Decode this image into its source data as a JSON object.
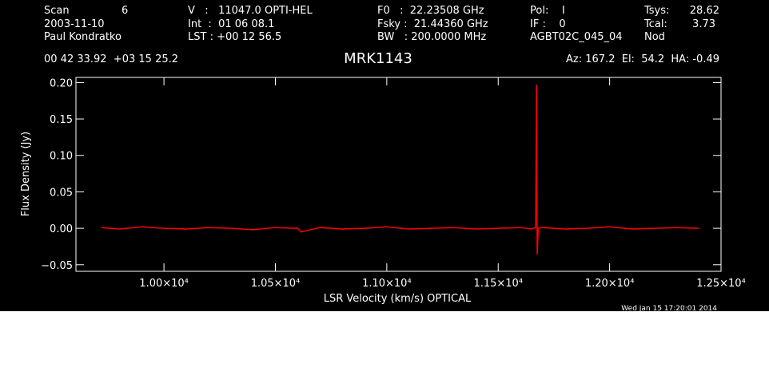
{
  "header": {
    "scan_label": "Scan",
    "scan": "6",
    "date": "2003-11-10",
    "observer": "Paul Kondratko",
    "velocity": "V   :   11047.0 OPTI-HEL",
    "int": "Int  :  01 06 08.1",
    "lst": "LST : +00 12 56.5",
    "f0": "F0   :  22.23508 GHz",
    "fsky": "Fsky :  21.44360 GHz",
    "bw": "BW   : 200.0000 MHz",
    "pol": "Pol:    I",
    "if": "IF :    0",
    "project": "AGBT02C_045_04",
    "tsys_label": "Tsys:",
    "tsys": "28.62",
    "tcal_label": "Tcal:",
    "tcal": "3.73",
    "proc": "Nod",
    "coords": "00 42 33.92  +03 15 25.2",
    "azel": "Az: 167.2  El:  54.2  HA: -0.49",
    "timestamp": "Wed Jan 15 17:20:01 2014"
  },
  "chart_data": {
    "type": "line",
    "title": "MRK1143",
    "xlabel": "LSR Velocity (km/s) OPTICAL",
    "ylabel": "Flux Density (Jy)",
    "x": [
      9720,
      9800,
      9900,
      10000,
      10100,
      10200,
      10300,
      10400,
      10500,
      10600,
      10615,
      10700,
      10800,
      10900,
      11000,
      11100,
      11200,
      11300,
      11400,
      11500,
      11600,
      11650,
      11668,
      11672,
      11675,
      11680,
      11700,
      11800,
      11900,
      12000,
      12100,
      12200,
      12300,
      12400
    ],
    "series": [
      {
        "color": "#ff0000",
        "values": [
          0.001,
          -0.001,
          0.002,
          0.0,
          -0.001,
          0.001,
          0.0,
          -0.002,
          0.001,
          0.0,
          -0.005,
          0.001,
          -0.001,
          0.0,
          0.002,
          -0.001,
          0.0,
          0.001,
          -0.001,
          0.0,
          0.001,
          -0.001,
          0.001,
          0.197,
          -0.036,
          0.0,
          0.001,
          -0.001,
          0.0,
          0.002,
          -0.001,
          0.0,
          0.001,
          0.0
        ]
      }
    ],
    "xlim": [
      9605,
      12500
    ],
    "ylim": [
      -0.059,
      0.207
    ],
    "xticks": [
      {
        "value": 10000,
        "label": "1.00×10⁴"
      },
      {
        "value": 10500,
        "label": "1.05×10⁴"
      },
      {
        "value": 11000,
        "label": "1.10×10⁴"
      },
      {
        "value": 11500,
        "label": "1.15×10⁴"
      },
      {
        "value": 12000,
        "label": "1.20×10⁴"
      },
      {
        "value": 12500,
        "label": "1.25×10⁴"
      }
    ],
    "yticks": [
      {
        "value": -0.05,
        "label": "−0.05"
      },
      {
        "value": 0.0,
        "label": "0.00"
      },
      {
        "value": 0.05,
        "label": "0.05"
      },
      {
        "value": 0.1,
        "label": "0.10"
      },
      {
        "value": 0.15,
        "label": "0.15"
      },
      {
        "value": 0.2,
        "label": "0.20"
      }
    ]
  }
}
